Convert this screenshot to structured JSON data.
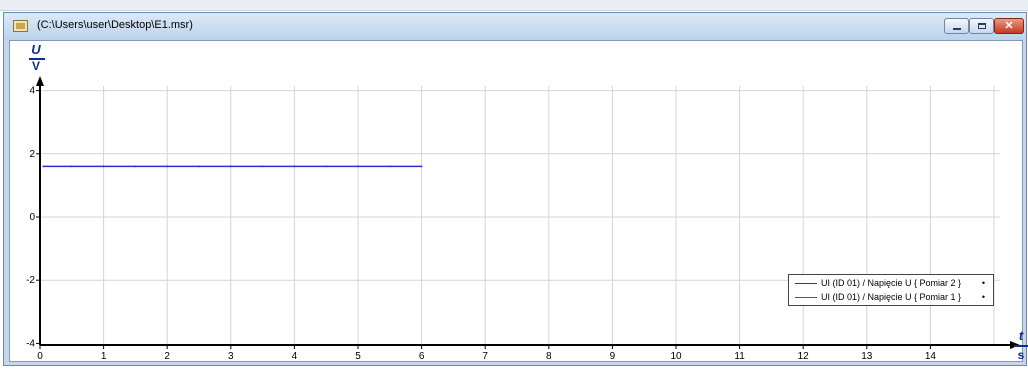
{
  "window": {
    "title": "(C:\\Users\\user\\Desktop\\E1.msr)",
    "close_label": "✕"
  },
  "y_axis": {
    "variable": "U",
    "unit": "V"
  },
  "x_axis": {
    "variable": "t",
    "unit": "s"
  },
  "legend": {
    "items": [
      {
        "label": "UI (ID 01) / Napięcie U { Pomiar 2 }",
        "color": "#2b2bd9",
        "marker": "•"
      },
      {
        "label": "UI (ID 01) / Napięcie U { Pomiar 1 }",
        "color": "#d42424",
        "marker": "•"
      }
    ]
  },
  "chart_data": {
    "type": "line",
    "xlim": [
      0,
      15
    ],
    "ylim": [
      -4,
      4.2
    ],
    "x_ticks": [
      "0",
      "1",
      "2",
      "3",
      "4",
      "5",
      "6",
      "7",
      "8",
      "9",
      "10",
      "11",
      "12",
      "13",
      "14"
    ],
    "y_ticks": [
      "4",
      "2",
      "0",
      "-2",
      "-4"
    ],
    "grid": true,
    "legend_position": "bottom-right",
    "series": [
      {
        "name": "UI (ID 01) / Napięcie U { Pomiar 2 }",
        "color": "#2b2bd9",
        "x": [
          0.05,
          0.5,
          1.0,
          1.5,
          2.0,
          2.5,
          3.0,
          3.5,
          4.0,
          4.5,
          5.0,
          5.5,
          6.0
        ],
        "y": [
          1.6,
          1.6,
          1.6,
          1.6,
          1.6,
          1.6,
          1.6,
          1.6,
          1.6,
          1.6,
          1.6,
          1.6,
          1.6
        ]
      },
      {
        "name": "UI (ID 01) / Napięcie U { Pomiar 1 }",
        "color": "#d42424",
        "x": [],
        "y": []
      }
    ]
  }
}
